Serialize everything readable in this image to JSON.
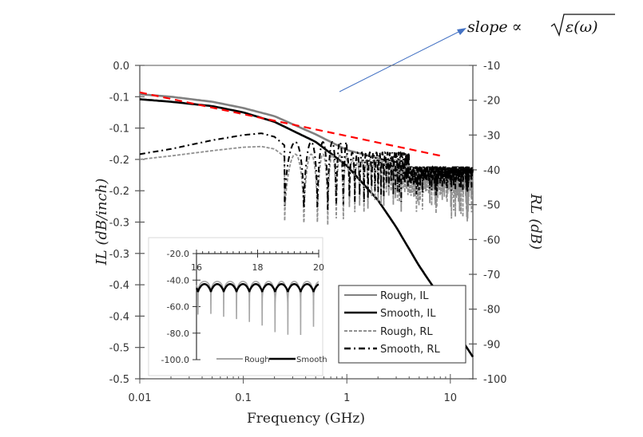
{
  "chart_data": {
    "type": "line",
    "title": "",
    "xlabel": "Frequency (GHz)",
    "ylabel": "IL (dB/inch)",
    "ylabel_right": "RL (dB)",
    "xscale": "log",
    "xlim": [
      0.01,
      16.5
    ],
    "ylim": [
      -0.5,
      0.0
    ],
    "ylim_right": [
      -100,
      -10
    ],
    "x_ticks": [
      "0.01",
      "0.1",
      "1",
      "10"
    ],
    "y_ticks": [
      "0.0",
      "-0.1",
      "-0.1",
      "-0.2",
      "-0.2",
      "-0.3",
      "-0.3",
      "-0.4",
      "-0.4",
      "-0.5",
      "-0.5"
    ],
    "y_ticks_right": [
      "-10",
      "-20",
      "-30",
      "-40",
      "-50",
      "-60",
      "-70",
      "-80",
      "-90",
      "-100"
    ],
    "grid": false,
    "legend": {
      "position": "bottom-right",
      "entries": [
        "Rough, IL",
        "Smooth, IL",
        "Rough, RL",
        "Smooth, RL"
      ]
    },
    "series": [
      {
        "name": "Rough, IL",
        "axis": "left",
        "color": "#808080",
        "style": "solid",
        "x": [
          0.01,
          0.02,
          0.05,
          0.1,
          0.2,
          0.5,
          1,
          2,
          3,
          5,
          8,
          12,
          16.5
        ],
        "y": [
          -0.046,
          -0.05,
          -0.058,
          -0.068,
          -0.081,
          -0.11,
          -0.135,
          -0.148,
          -0.16,
          -0.172,
          -0.18,
          -0.19,
          -0.2
        ]
      },
      {
        "name": "Smooth, IL",
        "axis": "left",
        "color": "#000000",
        "style": "solid",
        "x": [
          0.01,
          0.02,
          0.05,
          0.1,
          0.2,
          0.5,
          1,
          2,
          3,
          5,
          8,
          12,
          16.5
        ],
        "y": [
          -0.054,
          -0.058,
          -0.065,
          -0.075,
          -0.09,
          -0.122,
          -0.16,
          -0.215,
          -0.258,
          -0.32,
          -0.37,
          -0.43,
          -0.465
        ]
      },
      {
        "name": "Rough, RL",
        "axis": "right",
        "color": "#909090",
        "style": "dashed",
        "x": [
          0.01,
          0.02,
          0.05,
          0.1,
          0.15,
          0.2,
          0.3,
          0.38,
          0.5,
          0.65,
          0.8,
          1,
          2,
          5,
          10,
          16.5
        ],
        "y": [
          -37,
          -36,
          -34.5,
          -33.5,
          -33.3,
          -34,
          -38,
          -60,
          -40,
          -42,
          -56,
          -46,
          -52,
          -55,
          -58,
          -60
        ]
      },
      {
        "name": "Smooth, RL",
        "axis": "right",
        "color": "#000000",
        "style": "dash-dot",
        "x": [
          0.01,
          0.02,
          0.05,
          0.1,
          0.15,
          0.2,
          0.3,
          0.38,
          0.5,
          0.65,
          0.8,
          1,
          2,
          5,
          10,
          16.5
        ],
        "y": [
          -35.5,
          -34,
          -31.5,
          -30,
          -29.5,
          -30.5,
          -35,
          -57,
          -37,
          -39,
          -53,
          -42,
          -47,
          -48,
          -49,
          -50
        ]
      },
      {
        "name": "slope reference",
        "axis": "left",
        "color": "#ff0000",
        "style": "dashed",
        "x": [
          0.01,
          8.5
        ],
        "y": [
          -0.043,
          -0.145
        ]
      }
    ],
    "annotation": {
      "text": "slope ∝ √ε(ω)",
      "slope": "slope",
      "propto": "∝",
      "expr": "ε(ω)",
      "arrow_color": "#4472c4"
    },
    "inset": {
      "type": "line",
      "xlim": [
        16,
        20
      ],
      "ylim": [
        -100,
        -20
      ],
      "x_ticks": [
        "16",
        "18",
        "20"
      ],
      "y_ticks": [
        "-20.0",
        "-40.0",
        "-60.0",
        "-80.0",
        "-100.0"
      ],
      "legend": [
        "Rough",
        "Smooth"
      ],
      "series": [
        {
          "name": "Rough",
          "color": "#a6a6a6",
          "peak": -41,
          "dips": [
            -66,
            -68,
            -70,
            -72,
            -75,
            -80,
            -91,
            -82,
            -76
          ]
        },
        {
          "name": "Smooth",
          "color": "#000000",
          "peak": -43,
          "trough": -49,
          "periods": 10
        }
      ]
    }
  }
}
